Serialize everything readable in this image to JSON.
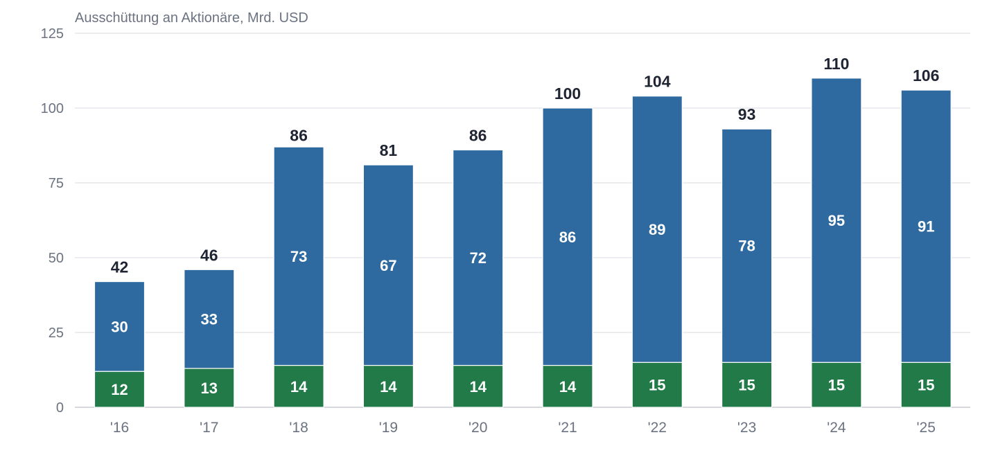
{
  "chart_data": {
    "type": "bar",
    "stacked": true,
    "title": "Ausschüttung an Aktionäre, Mrd. USD",
    "categories": [
      "'16",
      "'17",
      "'18",
      "'19",
      "'20",
      "'21",
      "'22",
      "'23",
      "'24",
      "'25"
    ],
    "series": [
      {
        "values": [
          12,
          13,
          14,
          14,
          14,
          14,
          15,
          15,
          15,
          15
        ],
        "color": "#217a47"
      },
      {
        "values": [
          30,
          33,
          73,
          67,
          72,
          86,
          89,
          78,
          95,
          91
        ],
        "color": "#2e6a9f"
      }
    ],
    "totals": [
      42,
      46,
      86,
      81,
      86,
      100,
      104,
      93,
      110,
      106
    ],
    "ylim": [
      0,
      125
    ],
    "yticks": [
      0,
      25,
      50,
      75,
      100,
      125
    ],
    "grid": true,
    "legend": "none"
  }
}
